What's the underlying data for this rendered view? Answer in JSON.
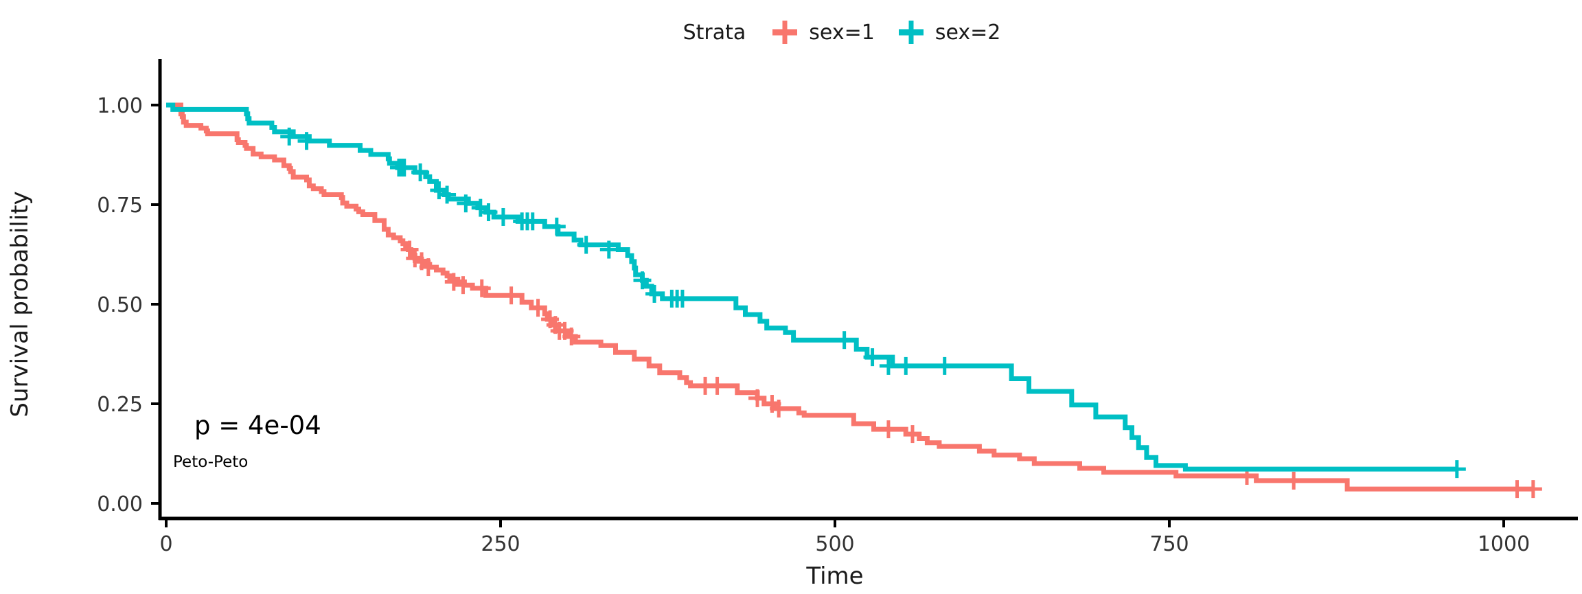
{
  "figure": {
    "background": "#ffffff"
  },
  "legend": {
    "title": "Strata",
    "items": [
      {
        "label": "sex=1",
        "color": "#F8766D"
      },
      {
        "label": "sex=2",
        "color": "#00BFC4"
      }
    ]
  },
  "chart_data": {
    "type": "line",
    "subtype": "kaplan-meier-step-survival",
    "title": "",
    "xlabel": "Time",
    "ylabel": "Survival probability",
    "legend_title": "Strata",
    "legend_position": "top",
    "grid": false,
    "xlim": [
      0,
      1050
    ],
    "ylim": [
      0,
      1
    ],
    "x_ticks": [
      {
        "v": 0,
        "label": "0"
      },
      {
        "v": 250,
        "label": "250"
      },
      {
        "v": 500,
        "label": "500"
      },
      {
        "v": 750,
        "label": "750"
      },
      {
        "v": 1000,
        "label": "1000"
      }
    ],
    "y_ticks": [
      {
        "v": 0.0,
        "label": "0.00"
      },
      {
        "v": 0.25,
        "label": "0.25"
      },
      {
        "v": 0.5,
        "label": "0.50"
      },
      {
        "v": 0.75,
        "label": "0.75"
      },
      {
        "v": 1.0,
        "label": "1.00"
      }
    ],
    "pvalue_label": "p = 4e-04",
    "method_label": "Peto-Peto",
    "series": [
      {
        "name": "sex=1",
        "color": "#F8766D",
        "steps": [
          [
            0,
            1.0
          ],
          [
            11,
            0.978
          ],
          [
            12,
            0.971
          ],
          [
            13,
            0.957
          ],
          [
            15,
            0.949
          ],
          [
            26,
            0.942
          ],
          [
            30,
            0.935
          ],
          [
            31,
            0.928
          ],
          [
            53,
            0.913
          ],
          [
            54,
            0.906
          ],
          [
            59,
            0.899
          ],
          [
            60,
            0.891
          ],
          [
            65,
            0.877
          ],
          [
            71,
            0.87
          ],
          [
            81,
            0.862
          ],
          [
            88,
            0.848
          ],
          [
            92,
            0.841
          ],
          [
            93,
            0.833
          ],
          [
            95,
            0.819
          ],
          [
            105,
            0.812
          ],
          [
            107,
            0.797
          ],
          [
            110,
            0.79
          ],
          [
            116,
            0.783
          ],
          [
            118,
            0.775
          ],
          [
            131,
            0.768
          ],
          [
            132,
            0.754
          ],
          [
            135,
            0.746
          ],
          [
            142,
            0.739
          ],
          [
            144,
            0.732
          ],
          [
            147,
            0.725
          ],
          [
            156,
            0.71
          ],
          [
            163,
            0.688
          ],
          [
            166,
            0.674
          ],
          [
            170,
            0.667
          ],
          [
            175,
            0.659
          ],
          [
            177,
            0.652
          ],
          [
            179,
            0.645
          ],
          [
            181,
            0.637
          ],
          [
            183,
            0.623
          ],
          [
            186,
            0.615
          ],
          [
            189,
            0.608
          ],
          [
            194,
            0.6
          ],
          [
            197,
            0.593
          ],
          [
            202,
            0.586
          ],
          [
            207,
            0.578
          ],
          [
            210,
            0.571
          ],
          [
            212,
            0.563
          ],
          [
            218,
            0.556
          ],
          [
            223,
            0.548
          ],
          [
            229,
            0.54
          ],
          [
            239,
            0.522
          ],
          [
            266,
            0.505
          ],
          [
            273,
            0.491
          ],
          [
            283,
            0.476
          ],
          [
            285,
            0.462
          ],
          [
            288,
            0.448
          ],
          [
            291,
            0.433
          ],
          [
            301,
            0.419
          ],
          [
            306,
            0.405
          ],
          [
            325,
            0.396
          ],
          [
            336,
            0.379
          ],
          [
            350,
            0.362
          ],
          [
            361,
            0.345
          ],
          [
            369,
            0.328
          ],
          [
            384,
            0.316
          ],
          [
            389,
            0.303
          ],
          [
            392,
            0.295
          ],
          [
            427,
            0.278
          ],
          [
            442,
            0.264
          ],
          [
            447,
            0.25
          ],
          [
            455,
            0.238
          ],
          [
            473,
            0.227
          ],
          [
            477,
            0.221
          ],
          [
            514,
            0.2
          ],
          [
            529,
            0.186
          ],
          [
            553,
            0.174
          ],
          [
            563,
            0.163
          ],
          [
            569,
            0.152
          ],
          [
            578,
            0.143
          ],
          [
            608,
            0.131
          ],
          [
            619,
            0.121
          ],
          [
            638,
            0.112
          ],
          [
            649,
            0.1
          ],
          [
            683,
            0.088
          ],
          [
            701,
            0.078
          ],
          [
            755,
            0.069
          ],
          [
            815,
            0.057
          ],
          [
            883,
            0.036
          ],
          [
            1022,
            0.036
          ]
        ],
        "censors": [
          [
            182,
            0.637
          ],
          [
            186,
            0.615
          ],
          [
            191,
            0.608
          ],
          [
            196,
            0.593
          ],
          [
            215,
            0.556
          ],
          [
            222,
            0.548
          ],
          [
            236,
            0.54
          ],
          [
            258,
            0.522
          ],
          [
            278,
            0.491
          ],
          [
            287,
            0.462
          ],
          [
            291,
            0.448
          ],
          [
            294,
            0.433
          ],
          [
            298,
            0.433
          ],
          [
            303,
            0.419
          ],
          [
            403,
            0.295
          ],
          [
            412,
            0.295
          ],
          [
            442,
            0.264
          ],
          [
            453,
            0.25
          ],
          [
            458,
            0.238
          ],
          [
            540,
            0.186
          ],
          [
            558,
            0.174
          ],
          [
            808,
            0.069
          ],
          [
            843,
            0.057
          ],
          [
            1010,
            0.036
          ],
          [
            1022,
            0.036
          ]
        ]
      },
      {
        "name": "sex=2",
        "color": "#00BFC4",
        "steps": [
          [
            0,
            1.0
          ],
          [
            5,
            0.989
          ],
          [
            60,
            0.978
          ],
          [
            61,
            0.966
          ],
          [
            62,
            0.955
          ],
          [
            79,
            0.944
          ],
          [
            81,
            0.933
          ],
          [
            95,
            0.921
          ],
          [
            107,
            0.91
          ],
          [
            122,
            0.899
          ],
          [
            145,
            0.886
          ],
          [
            153,
            0.876
          ],
          [
            166,
            0.865
          ],
          [
            167,
            0.854
          ],
          [
            173,
            0.843
          ],
          [
            186,
            0.831
          ],
          [
            194,
            0.82
          ],
          [
            197,
            0.808
          ],
          [
            202,
            0.786
          ],
          [
            208,
            0.775
          ],
          [
            211,
            0.764
          ],
          [
            226,
            0.753
          ],
          [
            233,
            0.742
          ],
          [
            239,
            0.731
          ],
          [
            245,
            0.719
          ],
          [
            263,
            0.708
          ],
          [
            283,
            0.695
          ],
          [
            293,
            0.676
          ],
          [
            305,
            0.661
          ],
          [
            310,
            0.649
          ],
          [
            338,
            0.637
          ],
          [
            345,
            0.622
          ],
          [
            348,
            0.607
          ],
          [
            350,
            0.591
          ],
          [
            351,
            0.574
          ],
          [
            356,
            0.56
          ],
          [
            359,
            0.545
          ],
          [
            363,
            0.526
          ],
          [
            371,
            0.514
          ],
          [
            426,
            0.491
          ],
          [
            433,
            0.474
          ],
          [
            444,
            0.457
          ],
          [
            449,
            0.44
          ],
          [
            463,
            0.429
          ],
          [
            469,
            0.41
          ],
          [
            516,
            0.387
          ],
          [
            524,
            0.367
          ],
          [
            543,
            0.345
          ],
          [
            632,
            0.313
          ],
          [
            645,
            0.281
          ],
          [
            677,
            0.247
          ],
          [
            695,
            0.217
          ],
          [
            717,
            0.19
          ],
          [
            722,
            0.165
          ],
          [
            727,
            0.14
          ],
          [
            733,
            0.115
          ],
          [
            740,
            0.095
          ],
          [
            762,
            0.086
          ],
          [
            965,
            0.086
          ]
        ],
        "censors": [
          [
            92,
            0.921
          ],
          [
            105,
            0.91
          ],
          [
            174,
            0.843
          ],
          [
            176,
            0.843
          ],
          [
            178,
            0.843
          ],
          [
            190,
            0.831
          ],
          [
            204,
            0.786
          ],
          [
            210,
            0.775
          ],
          [
            224,
            0.753
          ],
          [
            235,
            0.742
          ],
          [
            241,
            0.731
          ],
          [
            252,
            0.719
          ],
          [
            266,
            0.708
          ],
          [
            270,
            0.708
          ],
          [
            274,
            0.708
          ],
          [
            292,
            0.695
          ],
          [
            314,
            0.649
          ],
          [
            331,
            0.637
          ],
          [
            356,
            0.56
          ],
          [
            365,
            0.526
          ],
          [
            378,
            0.514
          ],
          [
            382,
            0.514
          ],
          [
            386,
            0.514
          ],
          [
            507,
            0.41
          ],
          [
            528,
            0.367
          ],
          [
            540,
            0.345
          ],
          [
            553,
            0.345
          ],
          [
            582,
            0.345
          ],
          [
            965,
            0.086
          ]
        ]
      }
    ]
  }
}
